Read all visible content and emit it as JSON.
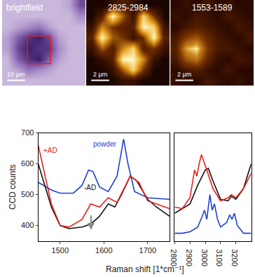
{
  "chart_data": [
    {
      "type": "heatmap",
      "title": "brightfield",
      "scale_bar": "10 µm",
      "tick_labels": false,
      "z": [
        [
          0.2,
          0.2,
          0.2,
          0.2,
          0.2,
          0.2,
          0.3,
          0.7
        ],
        [
          0.2,
          0.2,
          0.2,
          0.2,
          0.2,
          0.2,
          0.2,
          0.4
        ],
        [
          0.2,
          0.3,
          0.4,
          0.5,
          0.3,
          0.2,
          0.2,
          0.2
        ],
        [
          0.3,
          0.6,
          0.8,
          0.9,
          0.7,
          0.3,
          0.2,
          0.2
        ],
        [
          0.3,
          0.7,
          0.9,
          0.8,
          0.8,
          0.4,
          0.2,
          0.2
        ],
        [
          0.2,
          0.6,
          0.8,
          0.9,
          0.6,
          0.3,
          0.2,
          0.2
        ],
        [
          0.2,
          0.3,
          0.5,
          0.4,
          0.3,
          0.2,
          0.2,
          0.2
        ],
        [
          0.2,
          0.2,
          0.2,
          0.2,
          0.2,
          0.2,
          0.2,
          0.2
        ]
      ]
    },
    {
      "type": "heatmap",
      "title": "2825-2984",
      "scale_bar": "2 µm",
      "tick_labels": false,
      "z": [
        [
          0.1,
          0.1,
          0.2,
          0.3,
          0.2,
          0.1,
          0.1,
          0.1
        ],
        [
          0.1,
          0.3,
          0.9,
          0.5,
          0.2,
          0.8,
          0.4,
          0.1
        ],
        [
          0.2,
          0.6,
          0.4,
          0.3,
          0.3,
          0.9,
          0.8,
          0.2
        ],
        [
          0.3,
          0.9,
          0.5,
          0.4,
          0.2,
          0.4,
          0.9,
          0.3
        ],
        [
          0.2,
          0.5,
          0.3,
          0.6,
          0.8,
          0.3,
          0.4,
          0.2
        ],
        [
          0.1,
          0.2,
          0.3,
          0.9,
          0.9,
          0.6,
          0.2,
          0.1
        ],
        [
          0.1,
          0.1,
          0.2,
          0.5,
          0.8,
          0.4,
          0.1,
          0.1
        ],
        [
          0.1,
          0.1,
          0.1,
          0.2,
          0.2,
          0.1,
          0.1,
          0.1
        ]
      ]
    },
    {
      "type": "heatmap",
      "title": "1553-1589",
      "scale_bar": "2 µm",
      "tick_labels": false,
      "z": [
        [
          0.3,
          0.35,
          0.3,
          0.4,
          0.3,
          0.35,
          0.3,
          0.3
        ],
        [
          0.35,
          0.3,
          0.4,
          0.35,
          0.3,
          0.4,
          0.35,
          0.3
        ],
        [
          0.3,
          0.4,
          0.45,
          0.4,
          0.35,
          0.3,
          0.4,
          0.35
        ],
        [
          0.4,
          0.6,
          0.7,
          0.5,
          0.4,
          0.35,
          0.3,
          0.4
        ],
        [
          0.45,
          0.9,
          1.0,
          0.6,
          0.4,
          0.4,
          0.35,
          0.3
        ],
        [
          0.4,
          0.7,
          0.8,
          0.5,
          0.35,
          0.3,
          0.4,
          0.35
        ],
        [
          0.3,
          0.4,
          0.45,
          0.35,
          0.3,
          0.4,
          0.3,
          0.3
        ],
        [
          0.35,
          0.3,
          0.3,
          0.4,
          0.35,
          0.3,
          0.35,
          0.3
        ]
      ]
    },
    {
      "type": "line",
      "xlabel": "Raman shift [1*cm⁻¹]",
      "ylabel": "CCD counts",
      "xlim": [
        1450,
        1750
      ],
      "xticks": [
        1500,
        1600,
        1700
      ],
      "ylim": [
        350,
        700
      ],
      "yticks": [
        400,
        500,
        600,
        700
      ],
      "series": [
        {
          "name": "powder",
          "color": "#1f3fd0",
          "x": [
            1450,
            1480,
            1500,
            1530,
            1550,
            1565,
            1575,
            1590,
            1610,
            1630,
            1645,
            1655,
            1670,
            1700,
            1750
          ],
          "values": [
            540,
            515,
            505,
            505,
            530,
            580,
            575,
            525,
            510,
            560,
            680,
            600,
            510,
            490,
            485
          ]
        },
        {
          "name": "-AD",
          "color": "#111111",
          "x": [
            1450,
            1480,
            1500,
            1520,
            1550,
            1570,
            1590,
            1610,
            1625,
            1640,
            1660,
            1675,
            1700,
            1720,
            1750
          ],
          "values": [
            600,
            460,
            400,
            390,
            395,
            405,
            430,
            470,
            460,
            500,
            560,
            545,
            485,
            460,
            430
          ]
        },
        {
          "name": "+AD",
          "color": "#e8201a",
          "x": [
            1450,
            1480,
            1500,
            1520,
            1550,
            1570,
            1590,
            1610,
            1630,
            1650,
            1660,
            1680,
            1700,
            1720,
            1750
          ],
          "values": [
            660,
            470,
            400,
            395,
            420,
            470,
            460,
            490,
            475,
            530,
            560,
            540,
            480,
            470,
            455
          ]
        }
      ]
    },
    {
      "type": "line",
      "tick_labels": "x",
      "xlim": [
        2800,
        3300
      ],
      "xticks": [
        2800,
        2900,
        3000,
        3100,
        3200
      ],
      "ylim": [
        350,
        700
      ],
      "series": [
        {
          "color": "#1f3fd0",
          "x": [
            2800,
            2850,
            2900,
            2950,
            2980,
            2995,
            3010,
            3030,
            3045,
            3060,
            3080,
            3100,
            3140,
            3160,
            3175,
            3190,
            3210,
            3250,
            3300
          ],
          "values": [
            375,
            375,
            380,
            395,
            430,
            450,
            420,
            500,
            450,
            470,
            420,
            395,
            410,
            435,
            420,
            440,
            400,
            375,
            375
          ]
        },
        {
          "color": "#111111",
          "x": [
            2800,
            2900,
            2950,
            3000,
            3020,
            3050,
            3100,
            3150,
            3170,
            3200,
            3250,
            3300
          ],
          "values": [
            440,
            470,
            530,
            580,
            585,
            545,
            485,
            480,
            495,
            485,
            520,
            600
          ]
        },
        {
          "color": "#e8201a",
          "x": [
            2800,
            2850,
            2900,
            2930,
            2945,
            2960,
            2975,
            2990,
            3010,
            3050,
            3100,
            3150,
            3170,
            3200,
            3250,
            3300
          ],
          "values": [
            460,
            455,
            490,
            580,
            560,
            600,
            630,
            610,
            580,
            520,
            480,
            490,
            500,
            490,
            520,
            570
          ]
        }
      ]
    }
  ]
}
